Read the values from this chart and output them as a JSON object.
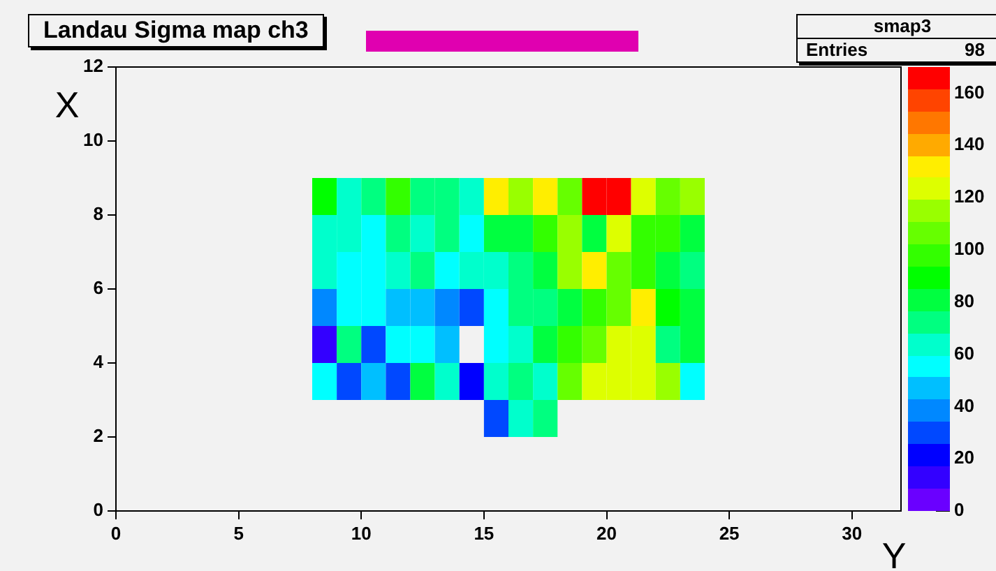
{
  "chart_data": {
    "type": "heatmap",
    "title": "Landau Sigma map ch3",
    "xlabel": "Y",
    "ylabel": "X",
    "annotations": [
      "smap3",
      "Entries",
      "98"
    ],
    "x": [
      8.5,
      9.5,
      10.5,
      11.5,
      12.5,
      13.5,
      14.5,
      15.5,
      16.5,
      17.5,
      18.5,
      19.5,
      20.5,
      21.5,
      22.5,
      23.5
    ],
    "y": [
      8.5,
      7.5,
      6.5,
      5.5,
      4.5,
      3.5,
      2.5
    ],
    "xlim": [
      0,
      32
    ],
    "xticks": [
      0,
      5,
      10,
      15,
      20,
      25,
      30
    ],
    "ylim": [
      0,
      12
    ],
    "yticks": [
      0,
      2,
      4,
      6,
      8,
      10,
      12
    ],
    "clim": [
      0,
      170
    ],
    "cticks": [
      0,
      20,
      40,
      60,
      80,
      100,
      120,
      140,
      160
    ],
    "cells": [
      [
        89,
        64,
        72,
        98,
        72,
        72,
        64,
        132,
        115,
        132,
        106,
        166,
        166,
        123,
        106,
        115
      ],
      [
        64,
        64,
        55,
        72,
        64,
        72,
        55,
        81,
        81,
        98,
        115,
        81,
        123,
        98,
        98,
        81
      ],
      [
        64,
        55,
        55,
        64,
        72,
        55,
        64,
        64,
        72,
        81,
        115,
        132,
        106,
        98,
        81,
        72
      ],
      [
        38,
        55,
        55,
        47,
        47,
        38,
        30,
        55,
        72,
        72,
        81,
        98,
        106,
        132,
        89,
        81
      ],
      [
        13,
        72,
        30,
        55,
        55,
        47,
        null,
        55,
        64,
        81,
        98,
        106,
        123,
        123,
        72,
        81
      ],
      [
        55,
        30,
        47,
        30,
        81,
        64,
        21,
        64,
        72,
        64,
        106,
        123,
        123,
        123,
        115,
        55
      ],
      [
        null,
        null,
        null,
        null,
        null,
        null,
        null,
        30,
        64,
        72,
        null,
        null,
        null,
        null,
        null,
        null
      ]
    ]
  }
}
